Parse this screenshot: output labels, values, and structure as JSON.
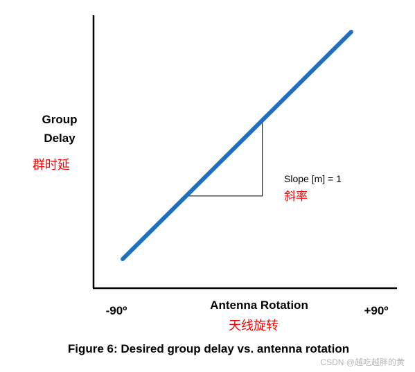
{
  "chart_data": {
    "type": "line",
    "title": "",
    "xlabel": "Antenna Rotation",
    "xlabel_cn": "天线旋转",
    "ylabel": "Group Delay",
    "ylabel_cn": "群时延",
    "x_tick_min_label": "-90º",
    "x_tick_max_label": "+90º",
    "xlim": [
      -90,
      90
    ],
    "ylim": [
      -90,
      90
    ],
    "grid": false,
    "series": [
      {
        "name": "",
        "color": "#1f6fbf",
        "x": [
          -90,
          90
        ],
        "y": [
          -90,
          90
        ]
      }
    ],
    "annotation": {
      "text": "Slope [m] = 1",
      "text_cn": "斜率",
      "triangle_x": [
        -40,
        20
      ],
      "triangle_y": [
        -40,
        20
      ]
    },
    "caption": "Figure 6: Desired group delay vs. antenna rotation"
  },
  "watermark": "CSDN @越吃越胖的黄",
  "colors": {
    "line": "#1f6fbf",
    "axis": "#000000",
    "cn_text": "#ff0000",
    "watermark": "#b5b5b5"
  }
}
